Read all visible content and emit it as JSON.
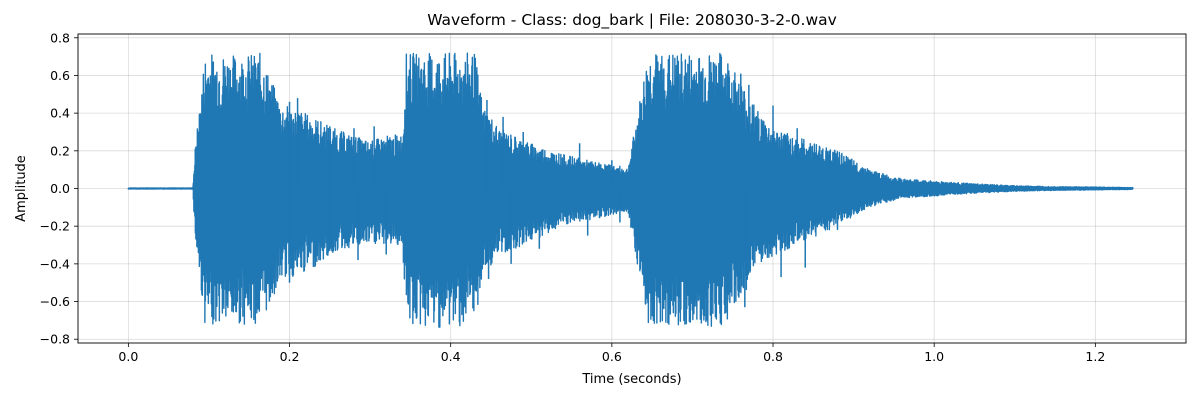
{
  "chart_data": {
    "type": "line",
    "title": "Waveform - Class: dog_bark | File: 208030-3-2-0.wav",
    "xlabel": "Time (seconds)",
    "ylabel": "Amplitude",
    "xlim": [
      -0.0625,
      1.3125
    ],
    "ylim": [
      -0.82,
      0.82
    ],
    "xticks": [
      0.0,
      0.2,
      0.4,
      0.6,
      0.8,
      1.0,
      1.2
    ],
    "xtick_labels": [
      "0.0",
      "0.2",
      "0.4",
      "0.6",
      "0.8",
      "1.0",
      "1.2"
    ],
    "yticks": [
      -0.8,
      -0.6,
      -0.4,
      -0.2,
      0.0,
      0.2,
      0.4,
      0.6,
      0.8
    ],
    "ytick_labels": [
      "−0.8",
      "−0.6",
      "−0.4",
      "−0.2",
      "0.0",
      "0.2",
      "0.4",
      "0.6",
      "0.8"
    ],
    "grid": true,
    "color": "#1f77b4",
    "series": [
      {
        "envelope": {
          "t": [
            0.0,
            0.08,
            0.083,
            0.095,
            0.11,
            0.14,
            0.165,
            0.175,
            0.19,
            0.21,
            0.23,
            0.26,
            0.3,
            0.32,
            0.34,
            0.345,
            0.36,
            0.4,
            0.43,
            0.44,
            0.46,
            0.5,
            0.54,
            0.58,
            0.62,
            0.645,
            0.65,
            0.7,
            0.74,
            0.75,
            0.78,
            0.8,
            0.84,
            0.88,
            0.92,
            0.96,
            1.0,
            1.05,
            1.1,
            1.15,
            1.2,
            1.247
          ],
          "max": [
            0.003,
            0.003,
            0.21,
            0.72,
            0.72,
            0.71,
            0.72,
            0.6,
            0.45,
            0.42,
            0.38,
            0.31,
            0.25,
            0.28,
            0.29,
            0.72,
            0.72,
            0.72,
            0.72,
            0.45,
            0.32,
            0.24,
            0.18,
            0.14,
            0.11,
            0.72,
            0.72,
            0.72,
            0.72,
            0.65,
            0.42,
            0.32,
            0.26,
            0.2,
            0.1,
            0.05,
            0.04,
            0.025,
            0.015,
            0.01,
            0.008,
            0.005
          ],
          "min": [
            -0.003,
            -0.003,
            -0.28,
            -0.72,
            -0.72,
            -0.72,
            -0.72,
            -0.62,
            -0.48,
            -0.47,
            -0.42,
            -0.33,
            -0.3,
            -0.3,
            -0.3,
            -0.72,
            -0.74,
            -0.74,
            -0.72,
            -0.46,
            -0.36,
            -0.28,
            -0.2,
            -0.16,
            -0.12,
            -0.72,
            -0.72,
            -0.74,
            -0.73,
            -0.66,
            -0.44,
            -0.36,
            -0.28,
            -0.2,
            -0.1,
            -0.05,
            -0.04,
            -0.025,
            -0.015,
            -0.01,
            -0.008,
            -0.005
          ]
        },
        "peaks": [
          {
            "t": 0.083,
            "v": 0.21
          },
          {
            "t": 0.086,
            "v": -0.28
          },
          {
            "t": 0.175,
            "v": 0.52
          },
          {
            "t": 0.2,
            "v": 0.46
          },
          {
            "t": 0.21,
            "v": 0.48
          },
          {
            "t": 0.175,
            "v": -0.6
          },
          {
            "t": 0.2,
            "v": -0.5
          },
          {
            "t": 0.215,
            "v": -0.42
          },
          {
            "t": 0.25,
            "v": 0.33
          },
          {
            "t": 0.28,
            "v": 0.32
          },
          {
            "t": 0.305,
            "v": 0.33
          },
          {
            "t": 0.25,
            "v": -0.33
          },
          {
            "t": 0.285,
            "v": -0.38
          },
          {
            "t": 0.32,
            "v": -0.35
          },
          {
            "t": 0.445,
            "v": 0.47
          },
          {
            "t": 0.465,
            "v": 0.38
          },
          {
            "t": 0.49,
            "v": 0.3
          },
          {
            "t": 0.447,
            "v": -0.48
          },
          {
            "t": 0.475,
            "v": -0.4
          },
          {
            "t": 0.51,
            "v": -0.32
          },
          {
            "t": 0.56,
            "v": 0.24
          },
          {
            "t": 0.57,
            "v": -0.25
          },
          {
            "t": 0.6,
            "v": 0.15
          },
          {
            "t": 0.61,
            "v": -0.18
          },
          {
            "t": 0.76,
            "v": 0.61
          },
          {
            "t": 0.77,
            "v": 0.55
          },
          {
            "t": 0.765,
            "v": -0.63
          },
          {
            "t": 0.8,
            "v": 0.44
          },
          {
            "t": 0.81,
            "v": -0.47
          },
          {
            "t": 0.83,
            "v": 0.32
          },
          {
            "t": 0.84,
            "v": -0.42
          },
          {
            "t": 0.87,
            "v": 0.2
          },
          {
            "t": 0.88,
            "v": -0.22
          },
          {
            "t": 0.9,
            "v": 0.11
          },
          {
            "t": 0.91,
            "v": -0.12
          },
          {
            "t": 0.94,
            "v": 0.05
          },
          {
            "t": 0.95,
            "v": -0.05
          }
        ]
      }
    ]
  }
}
